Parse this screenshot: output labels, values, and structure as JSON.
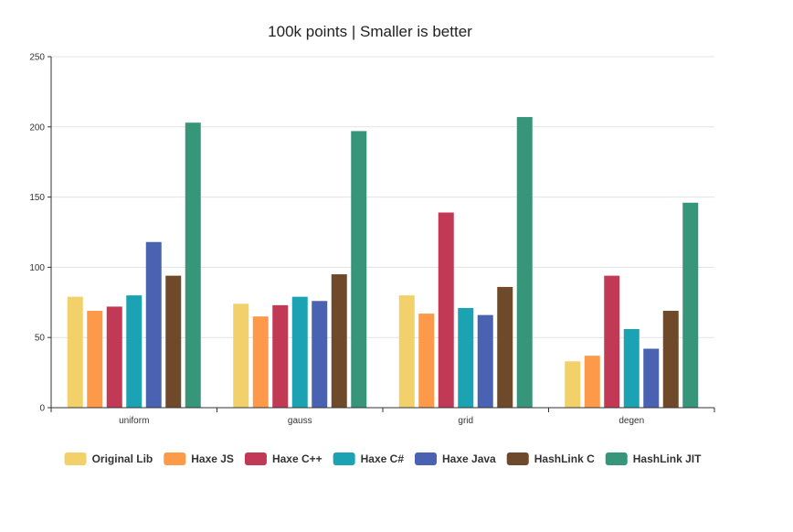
{
  "chart_data": {
    "type": "bar",
    "title": "100k points | Smaller is better",
    "xlabel": "",
    "ylabel": "",
    "categories": [
      "uniform",
      "gauss",
      "grid",
      "degen"
    ],
    "ylim": [
      0,
      250
    ],
    "yticks": [
      0,
      50,
      100,
      150,
      200,
      250
    ],
    "grid": true,
    "legend": "bottom",
    "series": [
      {
        "name": "Original Lib",
        "color": "#f2d16b",
        "values": [
          79,
          74,
          80,
          33
        ]
      },
      {
        "name": "Haxe JS",
        "color": "#fd9a4a",
        "values": [
          69,
          65,
          67,
          37
        ]
      },
      {
        "name": "Haxe C++",
        "color": "#c23955",
        "values": [
          72,
          73,
          139,
          94
        ]
      },
      {
        "name": "Haxe C#",
        "color": "#1ba3b3",
        "values": [
          80,
          79,
          71,
          56
        ]
      },
      {
        "name": "Haxe Java",
        "color": "#4a62b2",
        "values": [
          118,
          76,
          66,
          42
        ]
      },
      {
        "name": "HashLink C",
        "color": "#6e4a2a",
        "values": [
          94,
          95,
          86,
          69
        ]
      },
      {
        "name": "HashLink JIT",
        "color": "#37957a",
        "values": [
          203,
          197,
          207,
          146
        ]
      }
    ]
  }
}
